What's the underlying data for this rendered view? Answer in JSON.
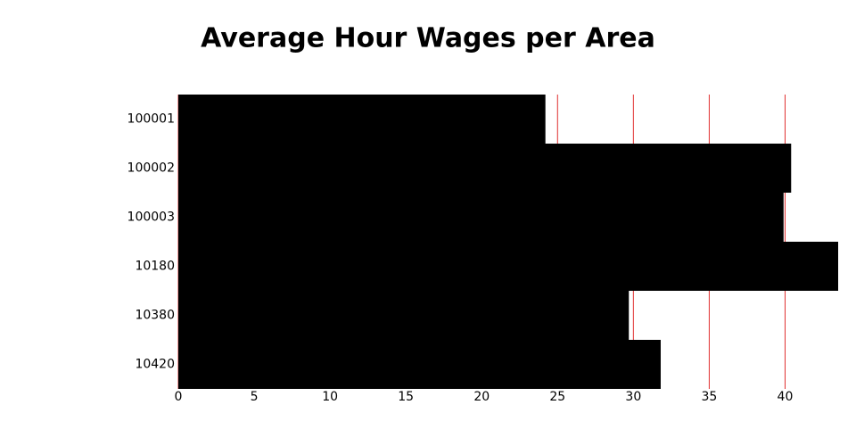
{
  "chart_data": {
    "type": "bar",
    "orientation": "horizontal",
    "title": "Average Hour Wages per Area",
    "categories": [
      "100001",
      "100002",
      "100003",
      "10180",
      "10380",
      "10420"
    ],
    "values": [
      24.2,
      40.4,
      39.9,
      43.5,
      29.7,
      31.8
    ],
    "color": "#000000",
    "xlim": [
      0,
      43.5
    ],
    "xticks": [
      0,
      5,
      10,
      15,
      20,
      25,
      30,
      35,
      40
    ],
    "grid": true,
    "grid_color": "#e03030"
  }
}
